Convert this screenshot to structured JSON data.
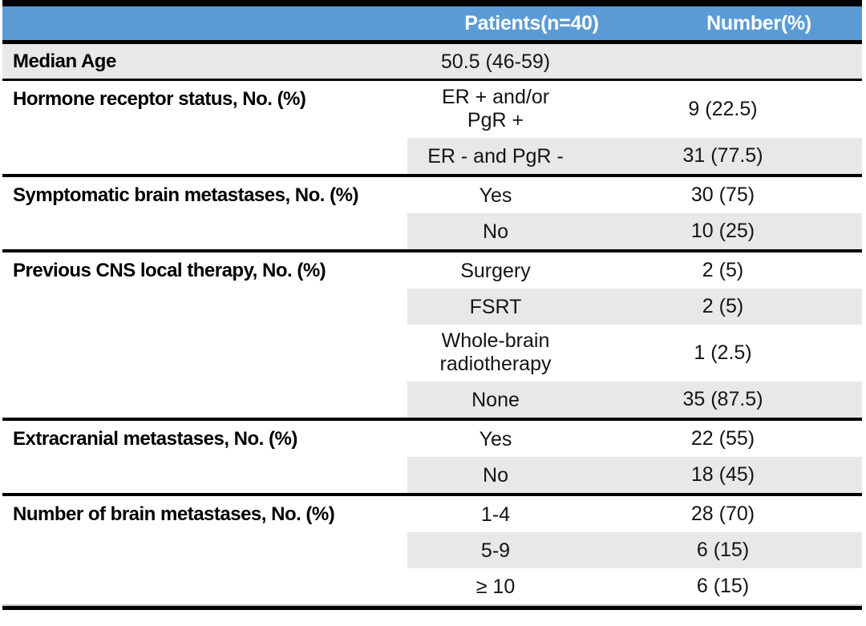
{
  "table": {
    "header": {
      "patients": "Patients(n=40)",
      "number": "Number(%)"
    },
    "groups": [
      {
        "label": "Median Age",
        "full_shade": true,
        "rows": [
          {
            "patients": "50.5 (46-59)",
            "number": ""
          }
        ]
      },
      {
        "label": "Hormone receptor status, No. (%)",
        "rows": [
          {
            "patients": "ER + and/or\nPgR +",
            "number": "9 (22.5)"
          },
          {
            "patients": "ER - and PgR -",
            "number": "31 (77.5)"
          }
        ]
      },
      {
        "label": "Symptomatic brain metastases, No. (%)",
        "rows": [
          {
            "patients": "Yes",
            "number": "30 (75)"
          },
          {
            "patients": "No",
            "number": "10 (25)"
          }
        ]
      },
      {
        "label": "Previous CNS local therapy, No. (%)",
        "rows": [
          {
            "patients": "Surgery",
            "number": "2 (5)"
          },
          {
            "patients": "FSRT",
            "number": "2 (5)"
          },
          {
            "patients": "Whole-brain\nradiotherapy",
            "number": "1 (2.5)"
          },
          {
            "patients": "None",
            "number": "35 (87.5)"
          }
        ]
      },
      {
        "label": "Extracranial metastases, No. (%)",
        "rows": [
          {
            "patients": "Yes",
            "number": "22 (55)"
          },
          {
            "patients": "No",
            "number": "18 (45)"
          }
        ]
      },
      {
        "label": "Number of brain metastases, No. (%)",
        "rows": [
          {
            "patients": "1-4",
            "number": "28 (70)"
          },
          {
            "patients": "5-9",
            "number": "6 (15)"
          },
          {
            "patients": "≥ 10",
            "number": "6 (15)"
          }
        ]
      }
    ],
    "colors": {
      "header_bg": "#5B9BD5",
      "header_text": "#FFFFFF",
      "row_shade": "#E9E8E8",
      "border": "#000000"
    }
  }
}
